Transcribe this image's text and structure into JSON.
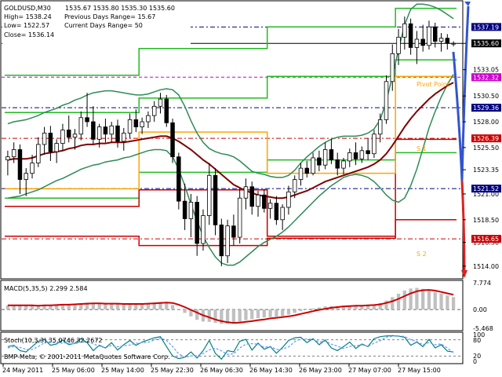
{
  "chart_data": [
    {
      "type": "candlestick",
      "info": {
        "symbol": "GOLDUSD,M30",
        "ohlc": "1535.67 1535.80 1535.30 1535.60",
        "high": "High= 1538.24",
        "low": "Low= 1522.57",
        "close": "Close= 1536.14",
        "prev_range": "Previous Days Range= 15.67",
        "curr_range": "Current Days Range= 50"
      },
      "ylim": [
        1513.0,
        1539.5
      ],
      "price_ticks": [
        {
          "value": 1535.6,
          "label": "1535.60"
        },
        {
          "value": 1533.05,
          "label": "1533.05"
        },
        {
          "value": 1530.5,
          "label": "1530.50"
        },
        {
          "value": 1528.0,
          "label": "1528.00"
        },
        {
          "value": 1525.5,
          "label": "1525.50"
        },
        {
          "value": 1523.35,
          "label": "1523.35"
        },
        {
          "value": 1521.0,
          "label": "1521.00"
        },
        {
          "value": 1518.5,
          "label": "1518.50"
        },
        {
          "value": 1516.3,
          "label": "1516.30"
        },
        {
          "value": 1514.0,
          "label": "1514.00"
        }
      ],
      "levels": [
        {
          "value": 1537.19,
          "label": "1537.19",
          "color": "#000080",
          "text": "#ffffff",
          "style": "dashdot"
        },
        {
          "value": 1535.6,
          "label": "1535.60",
          "color": "#000000",
          "text": "#ffffff",
          "style": "solid"
        },
        {
          "value": 1532.32,
          "label": "1532.32",
          "color": "#cc00cc",
          "text": "#ffffff",
          "style": "dash"
        },
        {
          "value": 1529.36,
          "label": "1529.36",
          "color": "#000080",
          "text": "#ffffff",
          "style": "dashdot"
        },
        {
          "value": 1526.39,
          "label": "1526.39",
          "color": "#cc0000",
          "text": "#ffffff",
          "style": "dashdot"
        },
        {
          "value": 1521.52,
          "label": "1521.52",
          "color": "#000080",
          "text": "#ffffff",
          "style": "dashdot"
        },
        {
          "value": 1516.65,
          "label": "1516.65",
          "color": "#cc0000",
          "text": "#ffffff",
          "style": "dashdot"
        }
      ],
      "level_labels": {
        "pivot": "Pivot Point",
        "s1": "S 1",
        "s2": "S 2"
      },
      "candles": [
        [
          1524.3,
          1525.2,
          1522.8,
          1524.6
        ],
        [
          1524.6,
          1526.0,
          1524.0,
          1525.3
        ],
        [
          1525.3,
          1525.8,
          1521.0,
          1522.4
        ],
        [
          1522.4,
          1523.5,
          1520.8,
          1523.0
        ],
        [
          1523.0,
          1524.8,
          1522.5,
          1524.0
        ],
        [
          1524.0,
          1526.5,
          1523.6,
          1525.8
        ],
        [
          1525.8,
          1527.5,
          1524.8,
          1526.9
        ],
        [
          1526.9,
          1527.6,
          1524.2,
          1525.1
        ],
        [
          1525.1,
          1526.3,
          1524.0,
          1525.9
        ],
        [
          1525.9,
          1527.8,
          1525.2,
          1527.2
        ],
        [
          1527.2,
          1528.6,
          1526.0,
          1526.5
        ],
        [
          1526.5,
          1527.3,
          1525.3,
          1526.8
        ],
        [
          1526.8,
          1529.0,
          1526.2,
          1528.4
        ],
        [
          1528.4,
          1530.8,
          1527.5,
          1528.0
        ],
        [
          1528.0,
          1529.5,
          1525.8,
          1526.3
        ],
        [
          1526.3,
          1527.8,
          1525.5,
          1527.5
        ],
        [
          1527.5,
          1528.3,
          1526.0,
          1526.8
        ],
        [
          1526.8,
          1528.0,
          1526.0,
          1527.6
        ],
        [
          1527.6,
          1528.2,
          1525.5,
          1526.1
        ],
        [
          1526.1,
          1527.4,
          1525.2,
          1526.9
        ],
        [
          1526.9,
          1528.8,
          1526.4,
          1528.2
        ],
        [
          1528.2,
          1529.2,
          1527.0,
          1527.5
        ],
        [
          1527.5,
          1528.4,
          1526.8,
          1528.0
        ],
        [
          1528.0,
          1529.0,
          1527.4,
          1528.6
        ],
        [
          1528.6,
          1530.0,
          1528.0,
          1529.5
        ],
        [
          1529.5,
          1530.8,
          1528.8,
          1530.2
        ],
        [
          1530.2,
          1530.6,
          1527.5,
          1527.9
        ],
        [
          1527.9,
          1528.3,
          1524.0,
          1524.6
        ],
        [
          1524.6,
          1525.0,
          1519.5,
          1520.3
        ],
        [
          1520.3,
          1522.0,
          1517.5,
          1518.6
        ],
        [
          1518.6,
          1521.0,
          1516.8,
          1520.2
        ],
        [
          1520.2,
          1520.8,
          1515.0,
          1516.2
        ],
        [
          1516.2,
          1519.5,
          1515.5,
          1518.9
        ],
        [
          1518.9,
          1524.0,
          1518.0,
          1522.8
        ],
        [
          1522.8,
          1523.5,
          1517.0,
          1518.0
        ],
        [
          1518.0,
          1518.6,
          1514.0,
          1515.0
        ],
        [
          1515.0,
          1518.5,
          1514.3,
          1517.9
        ],
        [
          1517.9,
          1519.0,
          1516.0,
          1516.8
        ],
        [
          1516.8,
          1521.5,
          1516.2,
          1520.6
        ],
        [
          1520.6,
          1522.5,
          1519.5,
          1521.7
        ],
        [
          1521.7,
          1522.2,
          1519.0,
          1519.8
        ],
        [
          1519.8,
          1521.3,
          1518.8,
          1520.9
        ],
        [
          1520.9,
          1521.5,
          1519.2,
          1519.6
        ],
        [
          1519.6,
          1520.5,
          1518.6,
          1520.1
        ],
        [
          1520.1,
          1520.8,
          1518.0,
          1518.5
        ],
        [
          1518.5,
          1520.0,
          1517.5,
          1519.7
        ],
        [
          1519.7,
          1521.8,
          1519.0,
          1521.2
        ],
        [
          1521.2,
          1522.8,
          1520.6,
          1522.4
        ],
        [
          1522.4,
          1524.0,
          1521.8,
          1523.5
        ],
        [
          1523.5,
          1524.2,
          1522.6,
          1523.0
        ],
        [
          1523.0,
          1525.0,
          1522.8,
          1524.5
        ],
        [
          1524.5,
          1525.2,
          1523.2,
          1523.8
        ],
        [
          1523.8,
          1526.0,
          1523.4,
          1525.3
        ],
        [
          1525.3,
          1526.3,
          1523.9,
          1524.3
        ],
        [
          1524.3,
          1525.0,
          1522.8,
          1523.5
        ],
        [
          1523.5,
          1524.5,
          1522.9,
          1524.2
        ],
        [
          1524.2,
          1525.4,
          1523.6,
          1525.0
        ],
        [
          1525.0,
          1526.0,
          1523.8,
          1524.4
        ],
        [
          1524.4,
          1525.6,
          1524.0,
          1525.2
        ],
        [
          1525.2,
          1526.4,
          1524.3,
          1524.9
        ],
        [
          1524.9,
          1527.2,
          1524.5,
          1526.8
        ],
        [
          1526.8,
          1528.8,
          1526.0,
          1528.2
        ],
        [
          1528.2,
          1532.5,
          1527.8,
          1531.9
        ],
        [
          1531.9,
          1535.5,
          1531.0,
          1534.6
        ],
        [
          1534.6,
          1537.0,
          1533.5,
          1536.2
        ],
        [
          1536.2,
          1538.2,
          1535.0,
          1537.5
        ],
        [
          1537.5,
          1538.0,
          1534.5,
          1535.2
        ],
        [
          1535.2,
          1536.8,
          1533.6,
          1536.0
        ],
        [
          1536.0,
          1537.4,
          1534.8,
          1535.4
        ],
        [
          1535.4,
          1537.8,
          1535.0,
          1537.2
        ],
        [
          1537.2,
          1537.6,
          1535.2,
          1535.8
        ],
        [
          1535.8,
          1536.6,
          1534.8,
          1536.1
        ],
        [
          1536.1,
          1536.5,
          1535.0,
          1535.6
        ],
        [
          1535.6,
          1535.8,
          1535.3,
          1535.6
        ]
      ],
      "ma_slow": [
        1524.3,
        1524.4,
        1524.4,
        1524.4,
        1524.5,
        1524.7,
        1524.9,
        1525.0,
        1525.1,
        1525.2,
        1525.4,
        1525.5,
        1525.7,
        1525.8,
        1525.8,
        1525.9,
        1525.9,
        1526.0,
        1526.0,
        1526.0,
        1526.1,
        1526.2,
        1526.3,
        1526.4,
        1526.5,
        1526.6,
        1526.6,
        1526.4,
        1526.1,
        1525.7,
        1525.3,
        1524.8,
        1524.3,
        1523.9,
        1523.4,
        1522.9,
        1522.4,
        1521.9,
        1521.6,
        1521.3,
        1521.1,
        1520.9,
        1520.8,
        1520.7,
        1520.6,
        1520.6,
        1520.7,
        1520.9,
        1521.1,
        1521.3,
        1521.6,
        1521.9,
        1522.2,
        1522.4,
        1522.6,
        1522.8,
        1523.0,
        1523.2,
        1523.4,
        1523.6,
        1523.9,
        1524.3,
        1524.9,
        1525.7,
        1526.6,
        1527.5,
        1528.3,
        1529.0,
        1529.6,
        1530.2,
        1530.7,
        1531.1,
        1531.5,
        1531.8
      ],
      "bb_upper": [
        1527.8,
        1528.0,
        1528.1,
        1528.2,
        1528.4,
        1528.6,
        1528.9,
        1529.1,
        1529.3,
        1529.6,
        1529.8,
        1530.1,
        1530.3,
        1530.6,
        1530.8,
        1530.9,
        1531.0,
        1531.0,
        1530.9,
        1530.8,
        1530.7,
        1530.6,
        1530.6,
        1530.7,
        1530.9,
        1531.1,
        1531.2,
        1531.1,
        1530.6,
        1529.5,
        1528.1,
        1526.9,
        1526.0,
        1525.4,
        1525.1,
        1524.9,
        1524.8,
        1524.6,
        1524.2,
        1523.7,
        1523.2,
        1523.0,
        1522.9,
        1522.7,
        1522.6,
        1522.6,
        1522.8,
        1523.3,
        1524.0,
        1524.6,
        1525.1,
        1525.6,
        1526.0,
        1526.3,
        1526.5,
        1526.6,
        1526.6,
        1526.6,
        1526.7,
        1526.9,
        1527.3,
        1528.2,
        1530.0,
        1532.4,
        1535.0,
        1537.4,
        1538.9,
        1539.4,
        1539.4,
        1539.3,
        1539.1,
        1538.8,
        1538.4,
        1538.0
      ],
      "bb_lower": [
        1520.6,
        1520.7,
        1520.8,
        1521.0,
        1521.2,
        1521.4,
        1521.7,
        1522.0,
        1522.3,
        1522.5,
        1522.8,
        1523.1,
        1523.4,
        1523.6,
        1523.8,
        1523.9,
        1524.1,
        1524.2,
        1524.3,
        1524.5,
        1524.6,
        1524.8,
        1525.0,
        1525.2,
        1525.3,
        1525.3,
        1525.2,
        1524.6,
        1523.4,
        1521.8,
        1520.0,
        1518.4,
        1516.9,
        1515.8,
        1514.9,
        1514.3,
        1514.1,
        1514.1,
        1514.4,
        1514.9,
        1515.4,
        1515.9,
        1516.3,
        1516.6,
        1516.9,
        1517.3,
        1517.8,
        1518.4,
        1519.0,
        1519.6,
        1520.2,
        1520.8,
        1521.3,
        1521.8,
        1522.2,
        1522.6,
        1522.8,
        1522.9,
        1522.8,
        1522.6,
        1522.2,
        1521.6,
        1520.9,
        1520.4,
        1520.2,
        1520.6,
        1521.8,
        1523.4,
        1525.4,
        1527.4,
        1529.0,
        1530.4,
        1531.6,
        1532.6
      ],
      "channel_green": [
        [
          1532.5,
          1535.1,
          1537.2,
          1539.0
        ],
        [
          1528.9,
          1530.3,
          1532.4,
          1534.0
        ],
        [
          1520.6,
          1523.1,
          1524.3,
          1525.0
        ]
      ],
      "channel_red": [
        [
          1519.8,
          1521.4,
          1516.9,
          1526.3
        ],
        [
          1516.9,
          1516.0,
          1516.7,
          1518.5
        ]
      ],
      "macd": {
        "label": "MACD(5,35,5) 2.299 2.584",
        "ylim": [
          -5.468,
          7.774
        ],
        "ticks": [
          {
            "value": 7.774,
            "label": "7.774"
          },
          {
            "value": 0.0,
            "label": "0.00"
          },
          {
            "value": -5.468,
            "label": "-5.468"
          }
        ],
        "hist": [
          1.2,
          1.3,
          1.2,
          1.1,
          1.0,
          1.1,
          1.3,
          1.4,
          1.4,
          1.5,
          1.6,
          1.6,
          1.8,
          2.0,
          1.8,
          1.7,
          1.7,
          1.6,
          1.6,
          1.5,
          1.6,
          1.6,
          1.7,
          1.8,
          2.0,
          2.2,
          2.0,
          1.3,
          0.2,
          -1.0,
          -2.0,
          -3.0,
          -3.5,
          -3.6,
          -3.9,
          -4.2,
          -4.1,
          -4.0,
          -3.6,
          -3.1,
          -2.8,
          -2.5,
          -2.3,
          -2.2,
          -2.1,
          -1.9,
          -1.5,
          -1.0,
          -0.5,
          -0.1,
          0.3,
          0.6,
          0.9,
          1.0,
          1.0,
          1.1,
          1.2,
          1.2,
          1.3,
          1.3,
          1.5,
          1.9,
          2.6,
          3.6,
          4.6,
          5.5,
          6.1,
          6.3,
          6.0,
          5.6,
          5.1,
          4.6,
          4.1,
          3.6
        ],
        "signal": [
          1.2,
          1.2,
          1.2,
          1.2,
          1.2,
          1.1,
          1.2,
          1.2,
          1.3,
          1.4,
          1.4,
          1.5,
          1.6,
          1.7,
          1.8,
          1.8,
          1.7,
          1.7,
          1.7,
          1.6,
          1.6,
          1.6,
          1.6,
          1.7,
          1.8,
          1.9,
          2.0,
          1.9,
          1.4,
          0.7,
          -0.1,
          -0.9,
          -1.7,
          -2.3,
          -2.9,
          -3.4,
          -3.7,
          -3.9,
          -3.8,
          -3.6,
          -3.4,
          -3.1,
          -2.9,
          -2.6,
          -2.4,
          -2.2,
          -2.0,
          -1.7,
          -1.3,
          -0.9,
          -0.5,
          -0.1,
          0.2,
          0.5,
          0.7,
          0.9,
          1.0,
          1.1,
          1.1,
          1.2,
          1.3,
          1.5,
          1.9,
          2.4,
          3.1,
          3.9,
          4.7,
          5.3,
          5.6,
          5.7,
          5.5,
          5.1,
          4.7,
          4.3
        ]
      },
      "stoch": {
        "label": "Stoch(10,3,3) 35.0746 32.2672",
        "ylim": [
          0,
          100
        ],
        "ticks": [
          {
            "value": 100,
            "label": "100"
          },
          {
            "value": 80,
            "label": "80"
          },
          {
            "value": 20,
            "label": "20"
          },
          {
            "value": 0,
            "label": "0"
          }
        ],
        "main": [
          55,
          60,
          40,
          35,
          55,
          75,
          82,
          60,
          65,
          80,
          62,
          68,
          85,
          70,
          40,
          60,
          50,
          70,
          42,
          62,
          78,
          60,
          72,
          80,
          88,
          92,
          55,
          20,
          10,
          15,
          35,
          12,
          40,
          78,
          30,
          8,
          40,
          35,
          75,
          82,
          42,
          68,
          45,
          55,
          30,
          52,
          78,
          88,
          90,
          70,
          85,
          62,
          80,
          50,
          40,
          55,
          72,
          48,
          65,
          55,
          85,
          92,
          95,
          96,
          94,
          90,
          60,
          72,
          55,
          82,
          50,
          62,
          38,
          35
        ],
        "signal": [
          50,
          55,
          52,
          45,
          44,
          55,
          70,
          72,
          68,
          68,
          69,
          65,
          72,
          74,
          65,
          57,
          50,
          60,
          54,
          58,
          61,
          67,
          70,
          71,
          80,
          87,
          78,
          55,
          28,
          15,
          20,
          21,
          29,
          43,
          49,
          39,
          26,
          28,
          50,
          64,
          66,
          64,
          52,
          56,
          44,
          46,
          54,
          73,
          85,
          83,
          82,
          72,
          76,
          64,
          57,
          48,
          56,
          58,
          62,
          56,
          68,
          77,
          91,
          94,
          95,
          93,
          81,
          74,
          62,
          70,
          62,
          65,
          50,
          32
        ]
      },
      "time_labels": [
        "24 May 2011",
        "25 May 06:00",
        "25 May 14:00",
        "25 May 22:30",
        "26 May 06:30",
        "26 May 14:30",
        "26 May 23:00",
        "27 May 07:00",
        "27 May 15:00"
      ],
      "copyright": "BMP-Meta, © 2001-2011 MetaQuotes Software Corp."
    }
  ],
  "colors": {
    "background": "#ffffff",
    "grid": "#000000",
    "candle_up": "#ffffff",
    "candle_down": "#000000",
    "ma_slow": "#800000",
    "bollinger": "#2e8b57",
    "pivot": "#ffa500",
    "channel_green": "#22bb22",
    "channel_red": "#cc0000",
    "projection_up": "#3355cc",
    "projection_down": "#dd2222",
    "macd_hist": "#c0c0c0",
    "macd_signal": "#cc0000",
    "stoch_main": "#008080",
    "stoch_signal": "#6699ff"
  }
}
